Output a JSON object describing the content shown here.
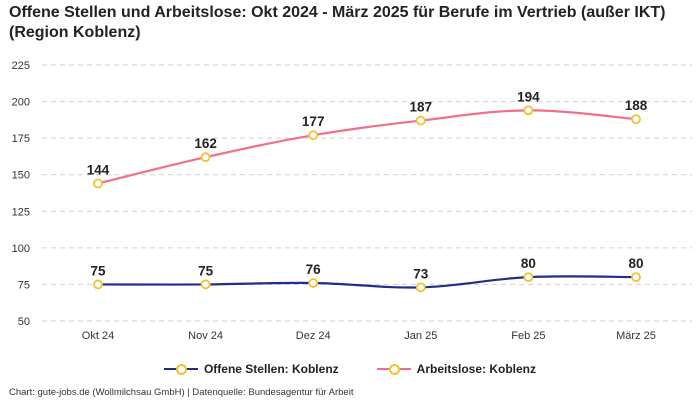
{
  "chart_data": {
    "type": "line",
    "title": "Offene Stellen und Arbeitslose: Okt 2024 - März 2025 für Berufe im Vertrieb (außer IKT) (Region Koblenz)",
    "categories": [
      "Okt 24",
      "Nov 24",
      "Dez 24",
      "Jan 25",
      "Feb 25",
      "März 25"
    ],
    "y_ticks": [
      "50",
      "75",
      "100",
      "125",
      "150",
      "175",
      "200",
      "225"
    ],
    "ylim": [
      50,
      225
    ],
    "grid": true,
    "legend_position": "bottom",
    "series": [
      {
        "name": "Offene Stellen: Koblenz",
        "values": [
          75,
          75,
          76,
          73,
          80,
          80
        ],
        "color": "#1f2e8a"
      },
      {
        "name": "Arbeitslose: Koblenz",
        "values": [
          144,
          162,
          177,
          187,
          194,
          188
        ],
        "color": "#f0708a"
      }
    ],
    "marker_color": "#f2c12e"
  },
  "footer": "Chart: gute-jobs.de (Wollmilchsau GmbH) | Datenquelle: Bundesagentur für Arbeit"
}
